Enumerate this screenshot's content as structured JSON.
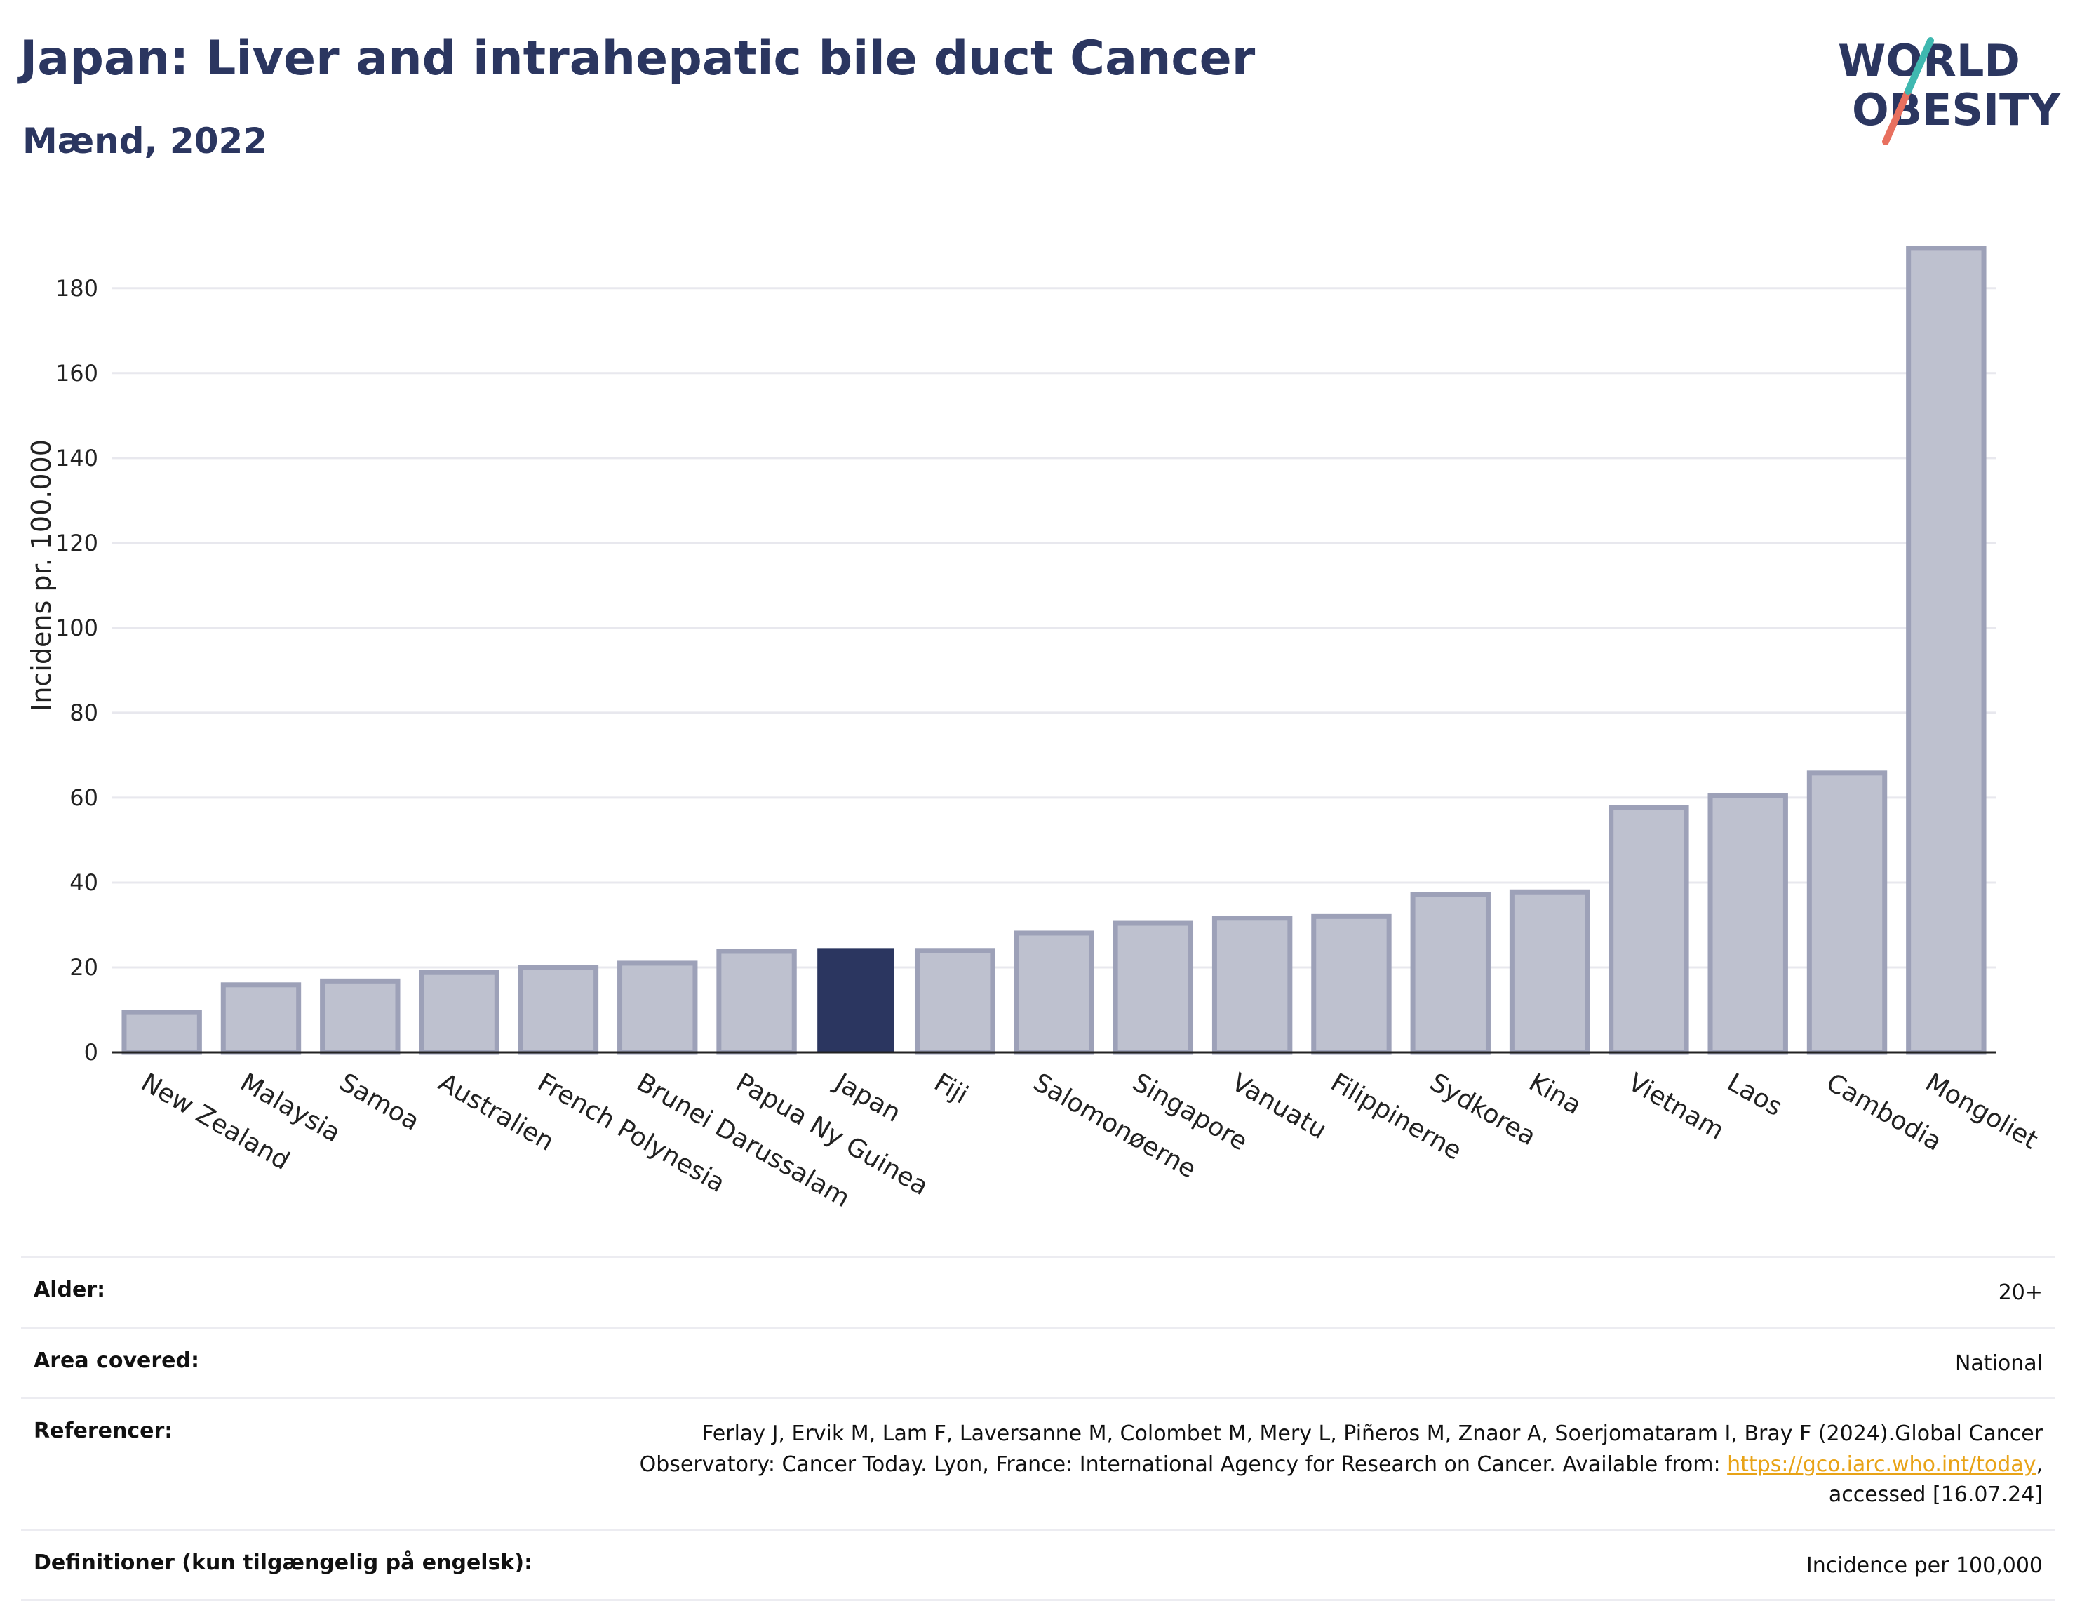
{
  "header": {
    "title": "Japan: Liver and intrahepatic bile duct Cancer",
    "subtitle": "Mænd, 2022"
  },
  "logo": {
    "line1": "WORLD",
    "line2": "OBESITY"
  },
  "colors": {
    "title": "#2b3660",
    "bar": "#bec1cf",
    "bar_edge": "#9da1b8",
    "highlight": "#2b3660",
    "grid": "#e8e8ee",
    "link": "#e8a317"
  },
  "chart_data": {
    "type": "bar",
    "categories": [
      "New Zealand",
      "Malaysia",
      "Samoa",
      "Australien",
      "French Polynesia",
      "Brunei Darussalam",
      "Papua Ny Guinea",
      "Japan",
      "Fiji",
      "Salomonøerne",
      "Singapore",
      "Vanuatu",
      "Filippinerne",
      "Sydkorea",
      "Kina",
      "Vietnam",
      "Laos",
      "Cambodia",
      "Mongoliet"
    ],
    "values": [
      9.4,
      15.9,
      16.8,
      18.8,
      20.0,
      21.0,
      23.8,
      24.4,
      24.0,
      28.1,
      30.4,
      31.6,
      32.0,
      37.2,
      37.8,
      57.6,
      60.4,
      65.8,
      189.4
    ],
    "highlight": "Japan",
    "ylabel": "Incidens pr. 100.000",
    "ylim": [
      0,
      195
    ],
    "yticks": [
      0,
      20,
      40,
      60,
      80,
      100,
      120,
      140,
      160,
      180
    ],
    "grid": true
  },
  "info": {
    "age": {
      "label": "Alder:",
      "value": "20+"
    },
    "area": {
      "label": "Area covered:",
      "value": "National"
    },
    "references": {
      "label": "Referencer:",
      "line1": "Ferlay J, Ervik M, Lam F, Laversanne M, Colombet M, Mery L, Piñeros M, Znaor A, Soerjomataram I, Bray F (2024).Global Cancer",
      "line2": "Observatory: Cancer Today. Lyon, France: International Agency for Research on Cancer. Available from: ",
      "link": "https://gco.iarc.who.int/today",
      "line2_end": ",",
      "line3": "accessed [16.07.24]"
    },
    "definitions": {
      "label": "Definitioner (kun tilgængelig på engelsk):",
      "value": "Incidence per 100,000"
    }
  }
}
